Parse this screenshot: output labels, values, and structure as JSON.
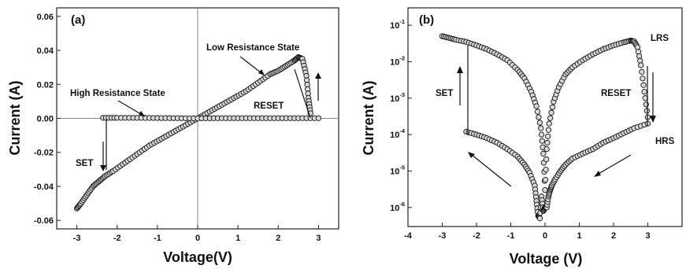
{
  "chart_data": [
    {
      "type": "scatter",
      "panel_label": "(a)",
      "xlabel": "Voltage(V)",
      "ylabel": "Current (A)",
      "xlim": [
        -3.5,
        3.5
      ],
      "ylim": [
        -0.065,
        0.065
      ],
      "x_ticks": [
        -3,
        -2,
        -1,
        0,
        1,
        2,
        3
      ],
      "x_tick_labels": [
        "-3",
        "-2",
        "-1",
        "0",
        "1",
        "2",
        "3"
      ],
      "y_ticks": [
        -0.06,
        -0.04,
        -0.02,
        0.0,
        0.02,
        0.04,
        0.06
      ],
      "y_tick_labels": [
        "-0.06",
        "-0.04",
        "-0.02",
        "0.00",
        "0.02",
        "0.04",
        "0.06"
      ],
      "grid": false,
      "zero_lines": true,
      "annotations": [
        {
          "text": "Low Resistance State",
          "at": [
            2.2,
            0.03
          ]
        },
        {
          "text": "High Resistance State",
          "at": [
            -1.3,
            0.0
          ]
        },
        {
          "text": "RESET",
          "at": [
            2.85,
            0.024
          ]
        },
        {
          "text": "SET",
          "at": [
            -2.45,
            -0.033
          ]
        }
      ],
      "series": [
        {
          "x": [
            -3.0,
            -2.9,
            -2.75,
            -2.6,
            -2.45,
            -2.3,
            -2.1,
            -1.8,
            -1.5,
            -1.2,
            -0.9,
            -0.6,
            -0.3,
            0.0,
            0.3,
            0.6,
            0.9,
            1.2,
            1.5,
            1.8,
            2.0,
            2.2,
            2.4,
            2.5,
            2.6,
            2.7,
            2.75,
            2.8
          ],
          "y": [
            -0.053,
            -0.05,
            -0.045,
            -0.04,
            -0.037,
            -0.034,
            -0.031,
            -0.026,
            -0.021,
            -0.016,
            -0.012,
            -0.008,
            -0.004,
            0.0,
            0.004,
            0.008,
            0.012,
            0.016,
            0.021,
            0.026,
            0.028,
            0.031,
            0.034,
            0.036,
            0.035,
            0.025,
            0.012,
            0.003
          ]
        },
        {
          "x": [
            -2.35,
            -2.0,
            -1.5,
            -1.0,
            -0.5,
            0.0,
            0.5,
            1.0,
            1.5,
            2.0,
            2.5,
            3.0
          ],
          "y": [
            0.0003,
            0.0003,
            0.0003,
            0.0002,
            0.0001,
            0.0,
            0.0001,
            0.0001,
            0.0001,
            0.0001,
            0.0001,
            0.0001
          ]
        }
      ]
    },
    {
      "type": "scatter",
      "panel_label": "(b)",
      "xlabel": "Voltage (V)",
      "ylabel": "Current (A)",
      "xlim": [
        -4,
        4
      ],
      "ylim": [
        3e-07,
        0.3
      ],
      "y_scale": "log",
      "x_ticks": [
        -4,
        -3,
        -2,
        -1,
        0,
        1,
        2,
        3
      ],
      "x_tick_labels": [
        "-4",
        "-3",
        "-2",
        "-1",
        "0",
        "1",
        "2",
        "3"
      ],
      "y_ticks": [
        1e-06,
        1e-05,
        0.0001,
        0.001,
        0.01,
        0.1
      ],
      "y_tick_labels": [
        {
          "base": "10",
          "exp": "-6"
        },
        {
          "base": "10",
          "exp": "-5"
        },
        {
          "base": "10",
          "exp": "-4"
        },
        {
          "base": "10",
          "exp": "-3"
        },
        {
          "base": "10",
          "exp": "-2"
        },
        {
          "base": "10",
          "exp": "-1"
        }
      ],
      "grid": false,
      "annotations": [
        {
          "text": "LRS",
          "at": [
            3.2,
            0.04
          ]
        },
        {
          "text": "HRS",
          "at": [
            3.2,
            0.0001
          ]
        },
        {
          "text": "SET",
          "at": [
            -3.4,
            0.002
          ]
        },
        {
          "text": "RESET",
          "at": [
            2.2,
            0.002
          ]
        }
      ],
      "series": [
        {
          "x": [
            -3.0,
            -2.8,
            -2.6,
            -2.3,
            -2.0,
            -1.7,
            -1.4,
            -1.1,
            -0.8,
            -0.6,
            -0.4,
            -0.25,
            -0.12,
            -0.05,
            0.0,
            0.05,
            0.12,
            0.25,
            0.4,
            0.6,
            0.8,
            1.1,
            1.4,
            1.7,
            2.0,
            2.3,
            2.5,
            2.6,
            2.7,
            2.8,
            2.9,
            3.0
          ],
          "y": [
            0.05,
            0.045,
            0.04,
            0.035,
            0.028,
            0.022,
            0.016,
            0.011,
            0.006,
            0.0035,
            0.0015,
            0.0006,
            0.00015,
            3e-05,
            3e-06,
            4e-05,
            0.0002,
            0.0008,
            0.002,
            0.0045,
            0.007,
            0.011,
            0.016,
            0.022,
            0.028,
            0.034,
            0.038,
            0.036,
            0.025,
            0.008,
            0.0015,
            0.0003
          ]
        },
        {
          "x": [
            -2.3,
            -2.0,
            -1.7,
            -1.4,
            -1.1,
            -0.8,
            -0.6,
            -0.45,
            -0.3,
            -0.25,
            -0.2,
            -0.15,
            -0.1,
            -0.05,
            0.0,
            0.05,
            0.1,
            0.15,
            0.2,
            0.3,
            0.45,
            0.6,
            0.8,
            1.1,
            1.4,
            1.7,
            2.0,
            2.3,
            2.6,
            3.0
          ],
          "y": [
            0.00012,
            0.0001,
            8e-05,
            6e-05,
            4e-05,
            2.5e-05,
            1.5e-05,
            9e-06,
            4e-06,
            1.5e-06,
            6e-07,
            5e-07,
            2e-06,
            8e-07,
            1e-06,
            1e-06,
            2e-06,
            3e-06,
            4e-06,
            6e-06,
            1e-05,
            1.5e-05,
            2.2e-05,
            3e-05,
            4e-05,
            6e-05,
            8e-05,
            0.00011,
            0.00015,
            0.0002
          ]
        }
      ]
    }
  ]
}
